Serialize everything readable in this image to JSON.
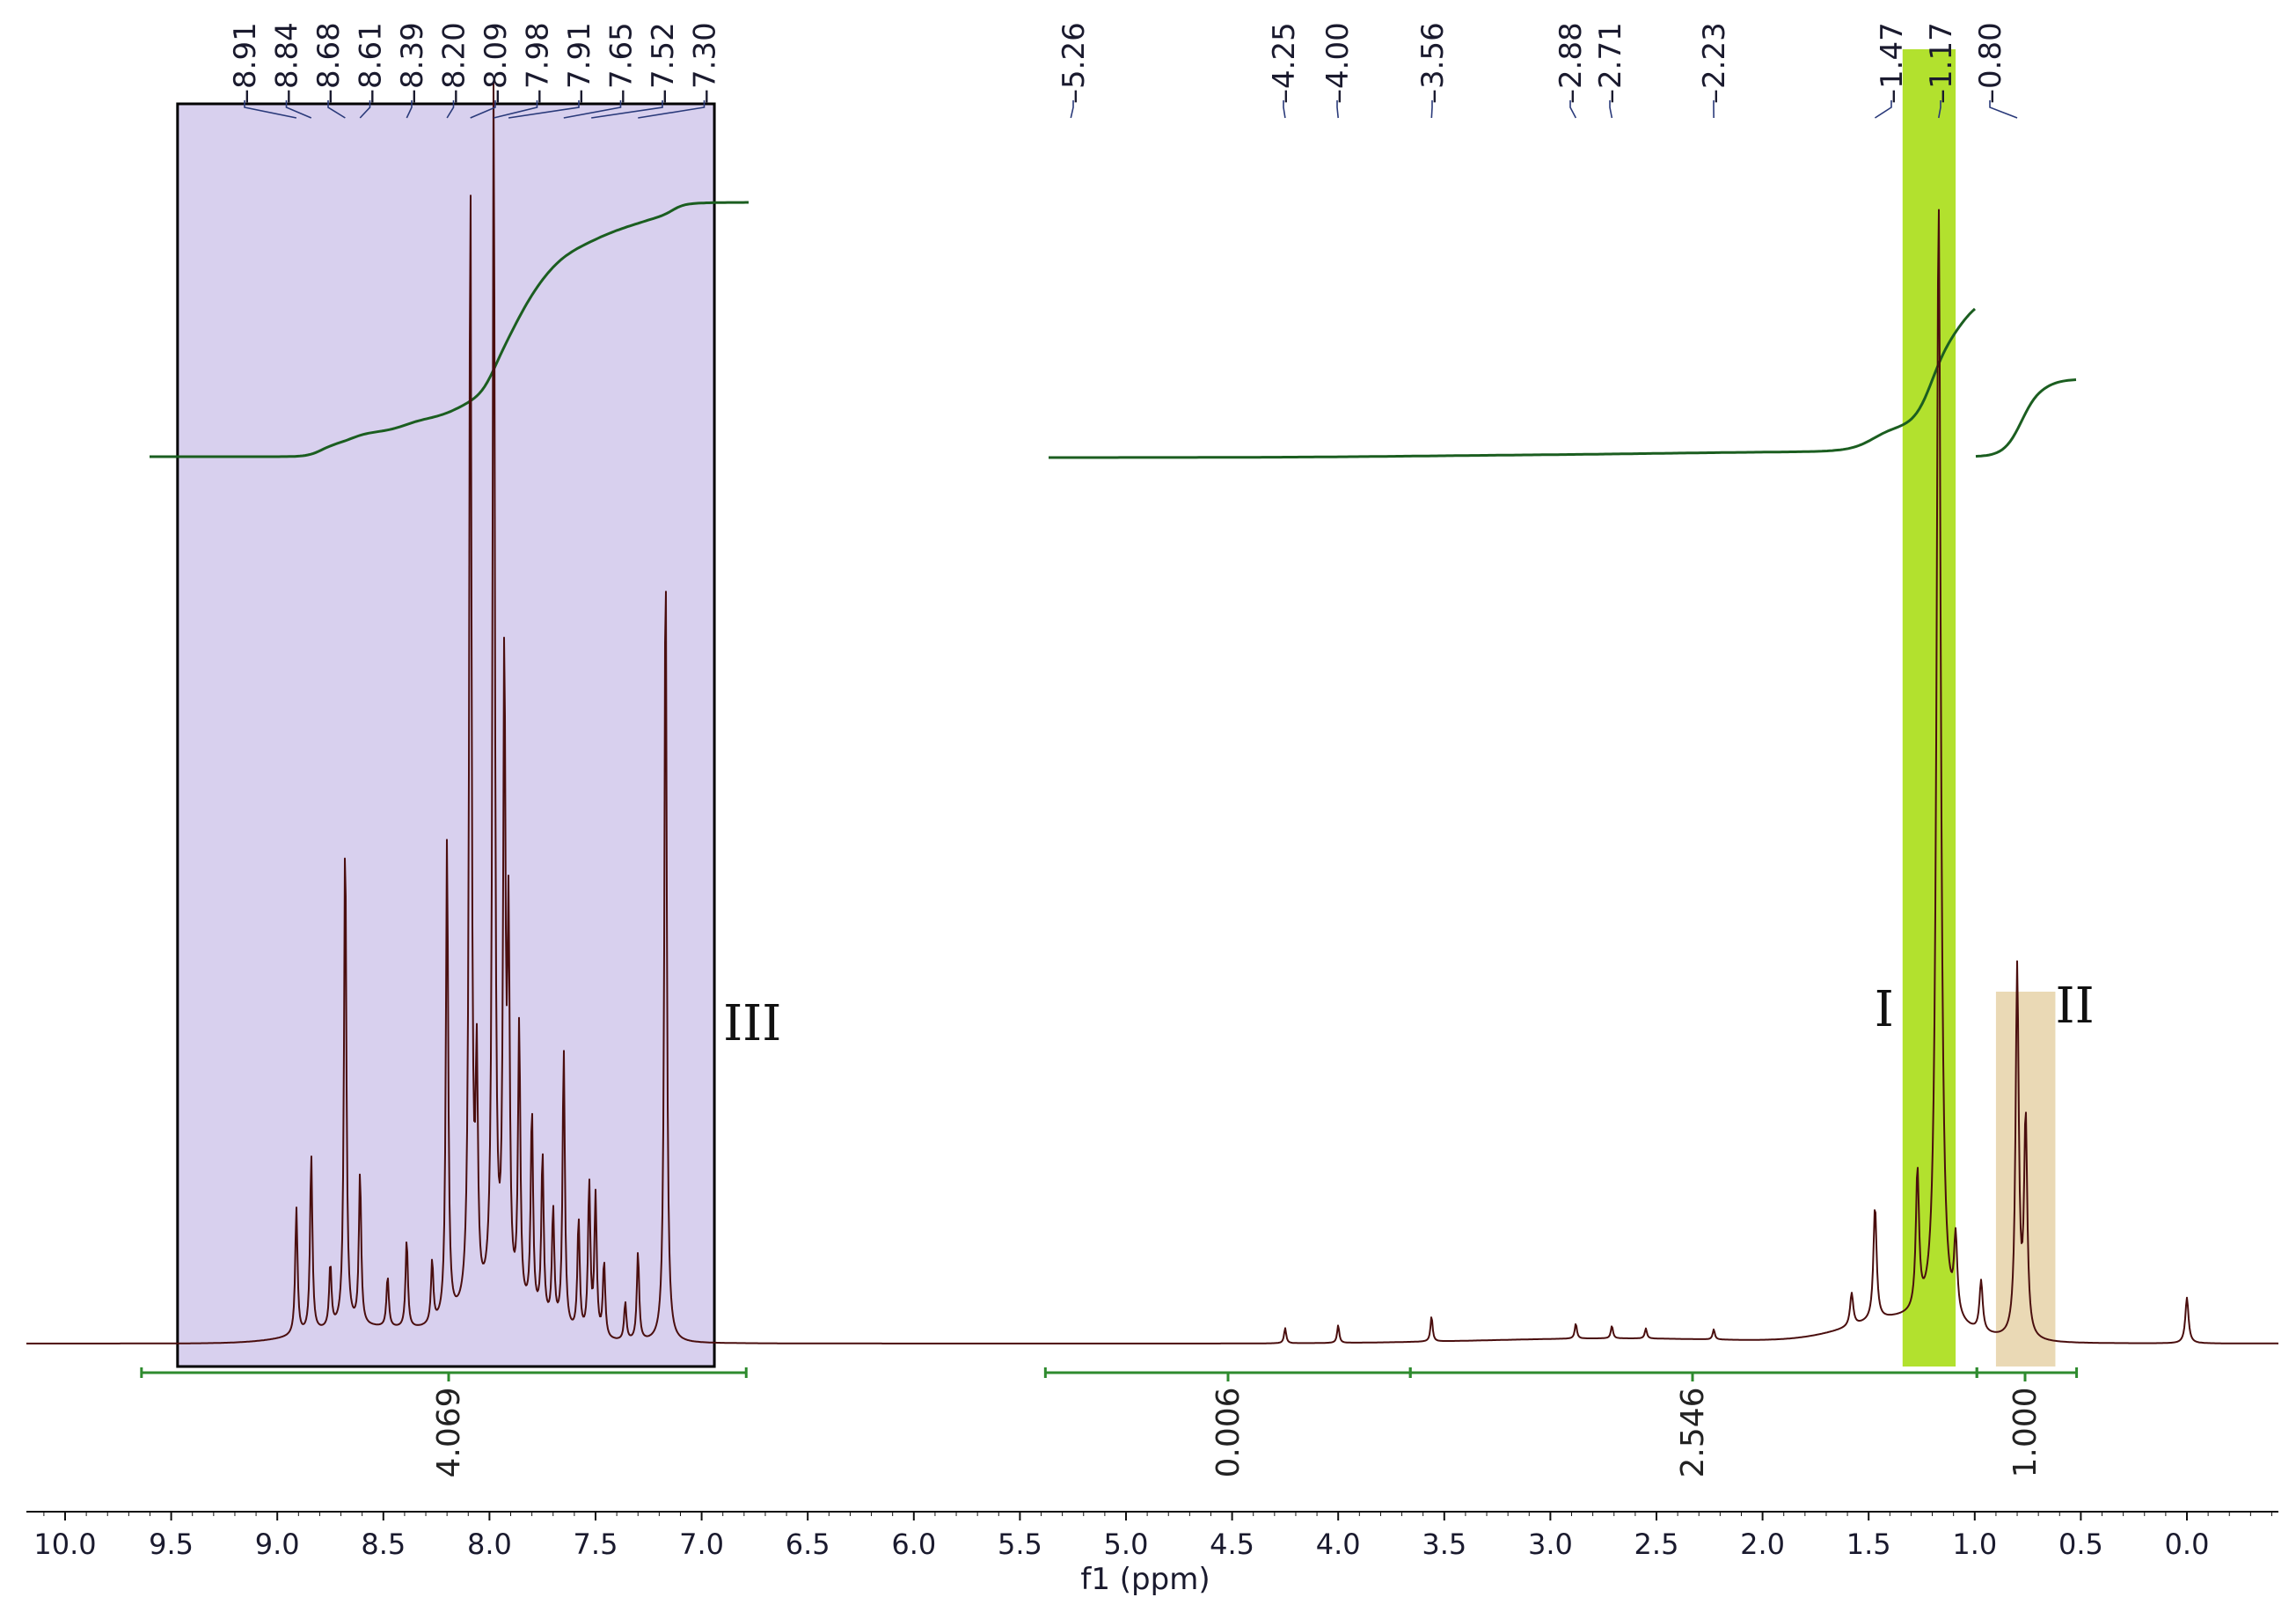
{
  "chart_data": {
    "type": "line",
    "title": "",
    "xlabel": "f1 (ppm)",
    "ylabel": "",
    "xlim": [
      10.2,
      -0.45
    ],
    "x_reversed": true,
    "grid": false,
    "x_ticks": [
      "10.0",
      "9.5",
      "9.0",
      "8.5",
      "8.0",
      "7.5",
      "7.0",
      "6.5",
      "6.0",
      "5.5",
      "5.0",
      "4.5",
      "4.0",
      "3.5",
      "3.0",
      "2.5",
      "2.0",
      "1.5",
      "1.0",
      "0.5",
      "0.0"
    ],
    "peak_labels": [
      "8.91",
      "8.84",
      "8.68",
      "8.61",
      "8.39",
      "8.20",
      "8.09",
      "7.98",
      "7.91",
      "7.65",
      "7.52",
      "7.30",
      "5.26",
      "4.25",
      "4.00",
      "3.56",
      "2.88",
      "2.71",
      "2.23",
      "1.47",
      "1.17",
      "0.80"
    ],
    "integrals": [
      {
        "from": 9.64,
        "to": 6.79,
        "value": "4.069"
      },
      {
        "from": 5.38,
        "to": 3.66,
        "value": "0.006"
      },
      {
        "from": 3.66,
        "to": 0.99,
        "value": "2.546"
      },
      {
        "from": 0.99,
        "to": 0.52,
        "value": "1.000"
      }
    ],
    "regions": [
      {
        "label": "III",
        "from": 9.47,
        "to": 6.94,
        "color": "#d8d0ee"
      },
      {
        "label": "I",
        "from": 1.34,
        "to": 1.09,
        "color": "#b2e12e"
      },
      {
        "label": "II",
        "from": 0.9,
        "to": 0.62,
        "color": "#ead9b5"
      }
    ],
    "spectrum_peaks": [
      {
        "x": 8.91,
        "y": 0.1
      },
      {
        "x": 8.84,
        "y": 0.14
      },
      {
        "x": 8.75,
        "y": 0.05
      },
      {
        "x": 8.68,
        "y": 0.39
      },
      {
        "x": 8.61,
        "y": 0.12
      },
      {
        "x": 8.48,
        "y": 0.04
      },
      {
        "x": 8.39,
        "y": 0.07
      },
      {
        "x": 8.27,
        "y": 0.05
      },
      {
        "x": 8.2,
        "y": 0.38
      },
      {
        "x": 8.09,
        "y": 0.9
      },
      {
        "x": 8.06,
        "y": 0.18
      },
      {
        "x": 7.98,
        "y": 0.97
      },
      {
        "x": 7.93,
        "y": 0.5
      },
      {
        "x": 7.91,
        "y": 0.28
      },
      {
        "x": 7.86,
        "y": 0.22
      },
      {
        "x": 7.8,
        "y": 0.16
      },
      {
        "x": 7.75,
        "y": 0.13
      },
      {
        "x": 7.7,
        "y": 0.09
      },
      {
        "x": 7.65,
        "y": 0.22
      },
      {
        "x": 7.58,
        "y": 0.09
      },
      {
        "x": 7.53,
        "y": 0.12
      },
      {
        "x": 7.5,
        "y": 0.11
      },
      {
        "x": 7.46,
        "y": 0.06
      },
      {
        "x": 7.36,
        "y": 0.03
      },
      {
        "x": 7.3,
        "y": 0.07
      },
      {
        "x": 7.17,
        "y": 0.63
      },
      {
        "x": 4.25,
        "y": 0.012
      },
      {
        "x": 4.0,
        "y": 0.014
      },
      {
        "x": 3.56,
        "y": 0.02
      },
      {
        "x": 2.88,
        "y": 0.012
      },
      {
        "x": 2.71,
        "y": 0.01
      },
      {
        "x": 2.55,
        "y": 0.008
      },
      {
        "x": 2.23,
        "y": 0.008
      },
      {
        "x": 1.58,
        "y": 0.026
      },
      {
        "x": 1.47,
        "y": 0.09
      },
      {
        "x": 1.27,
        "y": 0.11
      },
      {
        "x": 1.17,
        "y": 0.88
      },
      {
        "x": 1.09,
        "y": 0.06
      },
      {
        "x": 0.97,
        "y": 0.04
      },
      {
        "x": 0.8,
        "y": 0.29
      },
      {
        "x": 0.76,
        "y": 0.17
      },
      {
        "x": 0.0,
        "y": 0.036
      }
    ],
    "colors": {
      "spectrum": "#4a0e0e",
      "integral_curve": "#1b5e20",
      "integral_bar": "#2e8b2e",
      "label_text": "#1a1a2e",
      "peak_label_line": "#2a3a7a",
      "region_border": "#000000"
    }
  }
}
